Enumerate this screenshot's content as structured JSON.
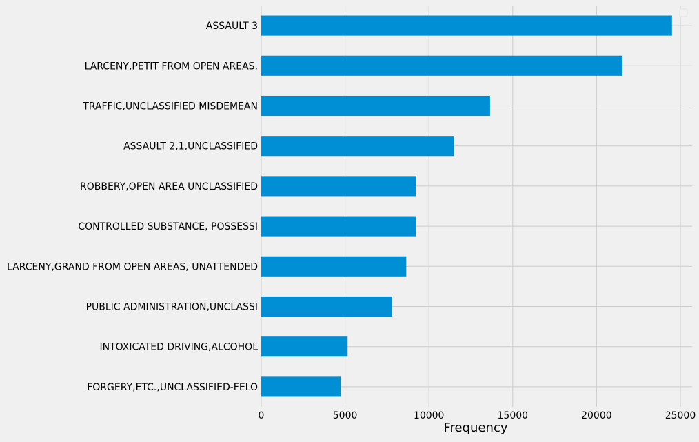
{
  "chart_data": {
    "type": "bar",
    "orientation": "horizontal",
    "title": "",
    "xlabel": "Frequency",
    "ylabel": "",
    "xlim": [
      0,
      25700
    ],
    "x_ticks": [
      0,
      5000,
      10000,
      15000,
      20000,
      25000
    ],
    "x_tick_labels": [
      "0",
      "5000",
      "10000",
      "15000",
      "20000",
      "25000"
    ],
    "grid": true,
    "legend": "top-right (empty)",
    "categories": [
      "ASSAULT 3",
      "LARCENY,PETIT FROM OPEN AREAS,",
      "TRAFFIC,UNCLASSIFIED MISDEMEAN",
      "ASSAULT 2,1,UNCLASSIFIED",
      "ROBBERY,OPEN AREA UNCLASSIFIED",
      "CONTROLLED SUBSTANCE, POSSESSI",
      "LARCENY,GRAND FROM OPEN AREAS, UNATTENDED",
      "PUBLIC ADMINISTRATION,UNCLASSI",
      "INTOXICATED DRIVING,ALCOHOL",
      "FORGERY,ETC.,UNCLASSIFIED-FELO"
    ],
    "values": [
      24500,
      21550,
      13650,
      11500,
      9250,
      9250,
      8650,
      7800,
      5150,
      4750
    ],
    "colors": {
      "bar": "#008fd5",
      "background": "#f0f0f0",
      "grid": "#cbcbcb",
      "text": "#000000"
    }
  }
}
